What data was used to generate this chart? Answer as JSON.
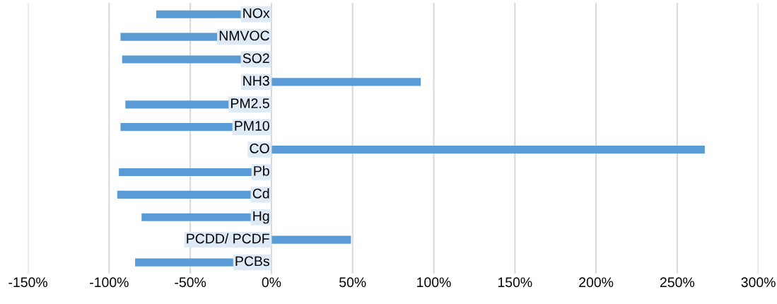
{
  "chart_data": {
    "type": "bar",
    "orientation": "horizontal",
    "categories": [
      "NOx",
      "NMVOC",
      "SO2",
      "NH3",
      "PM2.5",
      "PM10",
      "CO",
      "Pb",
      "Cd",
      "Hg",
      "PCDD/ PCDF",
      "PCBs"
    ],
    "values": [
      -71,
      -93,
      -92,
      92,
      -90,
      -93,
      267,
      -94,
      -95,
      -80,
      49,
      -84
    ],
    "color": "#5b9bd5",
    "xlim": [
      -150,
      300
    ],
    "xticks": [
      {
        "value": -150,
        "label": "-150%"
      },
      {
        "value": -100,
        "label": "-100%"
      },
      {
        "value": -50,
        "label": "-50%"
      },
      {
        "value": 0,
        "label": "0%"
      },
      {
        "value": 50,
        "label": "50%"
      },
      {
        "value": 100,
        "label": "100%"
      },
      {
        "value": 150,
        "label": "150%"
      },
      {
        "value": 200,
        "label": "200%"
      },
      {
        "value": 250,
        "label": "250%"
      },
      {
        "value": 300,
        "label": "300%"
      }
    ],
    "grid": "x",
    "legend": false
  }
}
